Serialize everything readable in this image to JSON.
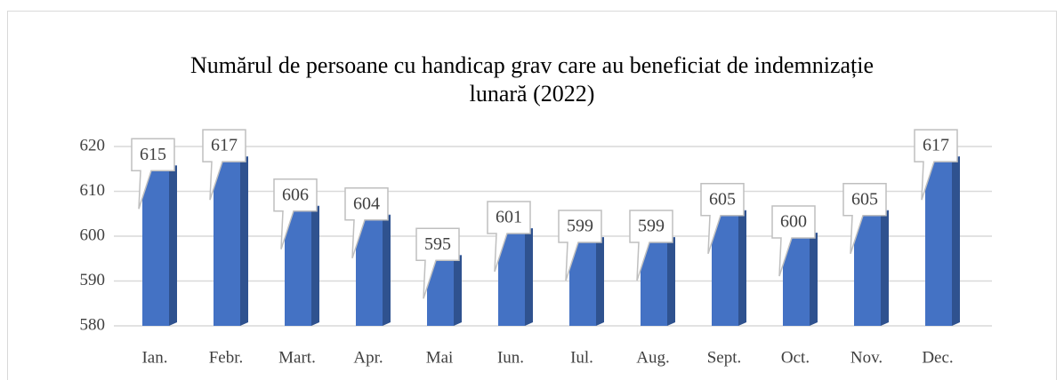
{
  "chart_data": {
    "type": "bar",
    "title": "Numărul de persoane cu handicap grav care au beneficiat de indemnizație lunară (2022)",
    "categories": [
      "Ian.",
      "Febr.",
      "Mart.",
      "Apr.",
      "Mai",
      "Iun.",
      "Iul.",
      "Aug.",
      "Sept.",
      "Oct.",
      "Nov.",
      "Dec."
    ],
    "values": [
      615,
      617,
      606,
      604,
      595,
      601,
      599,
      599,
      605,
      600,
      605,
      617
    ],
    "color": "#4472c4",
    "ylim": [
      580,
      620
    ],
    "yticks": [
      580,
      590,
      600,
      610,
      620
    ],
    "grid": true
  }
}
